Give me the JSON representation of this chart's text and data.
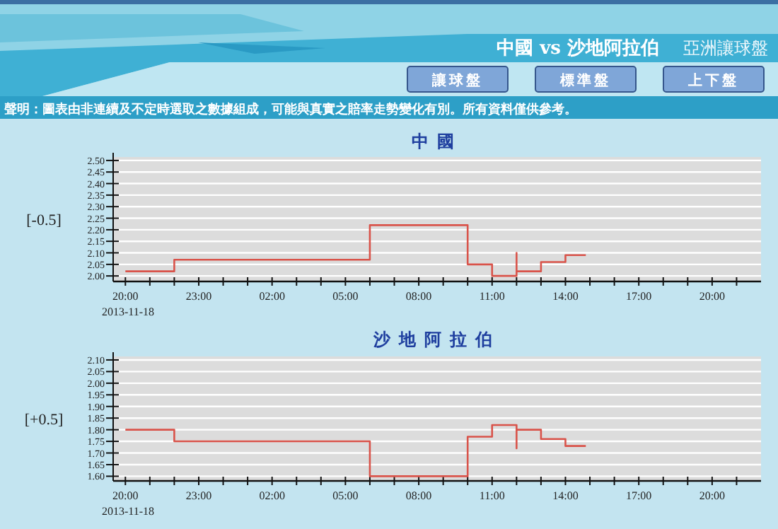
{
  "chart_data": [
    {
      "type": "other",
      "title": "中國 vs 沙地阿拉伯",
      "subtitle": "亞洲讓球盤",
      "annotations": [
        "讓球盤",
        "標準盤",
        "上下盤",
        "聲明：圖表由非連續及不定時選取之數據組成，可能與真實之賠率走勢變化有別。所有資料僅供參考。"
      ]
    },
    {
      "type": "step",
      "title": "中國",
      "ylabel": "[-0.5]",
      "annotations": [
        "2013-11-18"
      ],
      "grid": "y",
      "x": [
        "2013-11-18T20:00",
        "2013-11-18T22:00",
        "2013-11-19T06:00",
        "2013-11-19T10:00",
        "2013-11-19T11:00",
        "2013-11-19T12:00",
        "2013-11-19T12:00",
        "2013-11-19T13:00",
        "2013-11-19T14:00",
        "2013-11-19T14:50"
      ],
      "series": [
        {
          "color": "#d9534a",
          "values": [
            2.02,
            2.07,
            2.22,
            2.05,
            2.0,
            2.1,
            2.02,
            2.06,
            2.09,
            2.09
          ]
        }
      ],
      "xlim": [
        "2013-11-18T19:30",
        "2013-11-19T22:00"
      ],
      "xticks": [
        {
          "value": "2013-11-18T20:00",
          "label": "20:00"
        },
        {
          "value": "2013-11-18T21:00",
          "label": null
        },
        {
          "value": "2013-11-18T22:00",
          "label": null
        },
        {
          "value": "2013-11-18T23:00",
          "label": "23:00"
        },
        {
          "value": "2013-11-19T00:00",
          "label": null
        },
        {
          "value": "2013-11-19T01:00",
          "label": null
        },
        {
          "value": "2013-11-19T02:00",
          "label": "02:00"
        },
        {
          "value": "2013-11-19T03:00",
          "label": null
        },
        {
          "value": "2013-11-19T04:00",
          "label": null
        },
        {
          "value": "2013-11-19T05:00",
          "label": "05:00"
        },
        {
          "value": "2013-11-19T06:00",
          "label": null
        },
        {
          "value": "2013-11-19T07:00",
          "label": null
        },
        {
          "value": "2013-11-19T08:00",
          "label": "08:00"
        },
        {
          "value": "2013-11-19T09:00",
          "label": null
        },
        {
          "value": "2013-11-19T10:00",
          "label": null
        },
        {
          "value": "2013-11-19T11:00",
          "label": "11:00"
        },
        {
          "value": "2013-11-19T12:00",
          "label": null
        },
        {
          "value": "2013-11-19T13:00",
          "label": null
        },
        {
          "value": "2013-11-19T14:00",
          "label": "14:00"
        },
        {
          "value": "2013-11-19T15:00",
          "label": null
        },
        {
          "value": "2013-11-19T16:00",
          "label": null
        },
        {
          "value": "2013-11-19T17:00",
          "label": "17:00"
        },
        {
          "value": "2013-11-19T18:00",
          "label": null
        },
        {
          "value": "2013-11-19T19:00",
          "label": null
        },
        {
          "value": "2013-11-19T20:00",
          "label": "20:00"
        },
        {
          "value": "2013-11-19T21:00",
          "label": null
        }
      ],
      "ylim": [
        1.976,
        2.515
      ],
      "yticks": [
        {
          "value": 2.0,
          "label": "2.00"
        },
        {
          "value": 2.05,
          "label": "2.05"
        },
        {
          "value": 2.1,
          "label": "2.10"
        },
        {
          "value": 2.15,
          "label": "2.15"
        },
        {
          "value": 2.2,
          "label": "2.20"
        },
        {
          "value": 2.25,
          "label": "2.25"
        },
        {
          "value": 2.3,
          "label": "2.30"
        },
        {
          "value": 2.35,
          "label": "2.35"
        },
        {
          "value": 2.4,
          "label": "2.40"
        },
        {
          "value": 2.45,
          "label": "2.45"
        },
        {
          "value": 2.5,
          "label": "2.50"
        }
      ]
    },
    {
      "type": "step",
      "title": "沙地阿拉伯",
      "ylabel": "[+0.5]",
      "annotations": [
        "2013-11-18"
      ],
      "grid": "y",
      "x": [
        "2013-11-18T20:00",
        "2013-11-18T22:00",
        "2013-11-19T06:00",
        "2013-11-19T10:00",
        "2013-11-19T11:00",
        "2013-11-19T12:00",
        "2013-11-19T12:00",
        "2013-11-19T13:00",
        "2013-11-19T14:00",
        "2013-11-19T14:50"
      ],
      "series": [
        {
          "color": "#d9534a",
          "values": [
            1.8,
            1.75,
            1.6,
            1.77,
            1.82,
            1.72,
            1.8,
            1.76,
            1.73,
            1.73
          ]
        }
      ],
      "xlim": [
        "2013-11-18T19:30",
        "2013-11-19T22:00"
      ],
      "xticks": [
        {
          "value": "2013-11-18T20:00",
          "label": "20:00"
        },
        {
          "value": "2013-11-18T21:00",
          "label": null
        },
        {
          "value": "2013-11-18T22:00",
          "label": null
        },
        {
          "value": "2013-11-18T23:00",
          "label": "23:00"
        },
        {
          "value": "2013-11-19T00:00",
          "label": null
        },
        {
          "value": "2013-11-19T01:00",
          "label": null
        },
        {
          "value": "2013-11-19T02:00",
          "label": "02:00"
        },
        {
          "value": "2013-11-19T03:00",
          "label": null
        },
        {
          "value": "2013-11-19T04:00",
          "label": null
        },
        {
          "value": "2013-11-19T05:00",
          "label": "05:00"
        },
        {
          "value": "2013-11-19T06:00",
          "label": null
        },
        {
          "value": "2013-11-19T07:00",
          "label": null
        },
        {
          "value": "2013-11-19T08:00",
          "label": "08:00"
        },
        {
          "value": "2013-11-19T09:00",
          "label": null
        },
        {
          "value": "2013-11-19T10:00",
          "label": null
        },
        {
          "value": "2013-11-19T11:00",
          "label": "11:00"
        },
        {
          "value": "2013-11-19T12:00",
          "label": null
        },
        {
          "value": "2013-11-19T13:00",
          "label": null
        },
        {
          "value": "2013-11-19T14:00",
          "label": "14:00"
        },
        {
          "value": "2013-11-19T15:00",
          "label": null
        },
        {
          "value": "2013-11-19T16:00",
          "label": null
        },
        {
          "value": "2013-11-19T17:00",
          "label": "17:00"
        },
        {
          "value": "2013-11-19T18:00",
          "label": null
        },
        {
          "value": "2013-11-19T19:00",
          "label": null
        },
        {
          "value": "2013-11-19T20:00",
          "label": "20:00"
        },
        {
          "value": "2013-11-19T21:00",
          "label": null
        }
      ],
      "ylim": [
        1.58,
        2.115
      ],
      "yticks": [
        {
          "value": 1.6,
          "label": "1.60"
        },
        {
          "value": 1.65,
          "label": "1.65"
        },
        {
          "value": 1.7,
          "label": "1.70"
        },
        {
          "value": 1.75,
          "label": "1.75"
        },
        {
          "value": 1.8,
          "label": "1.80"
        },
        {
          "value": 1.85,
          "label": "1.85"
        },
        {
          "value": 1.9,
          "label": "1.90"
        },
        {
          "value": 1.95,
          "label": "1.95"
        },
        {
          "value": 2.0,
          "label": "2.00"
        },
        {
          "value": 2.05,
          "label": "2.05"
        },
        {
          "value": 2.1,
          "label": "2.10"
        }
      ]
    }
  ]
}
